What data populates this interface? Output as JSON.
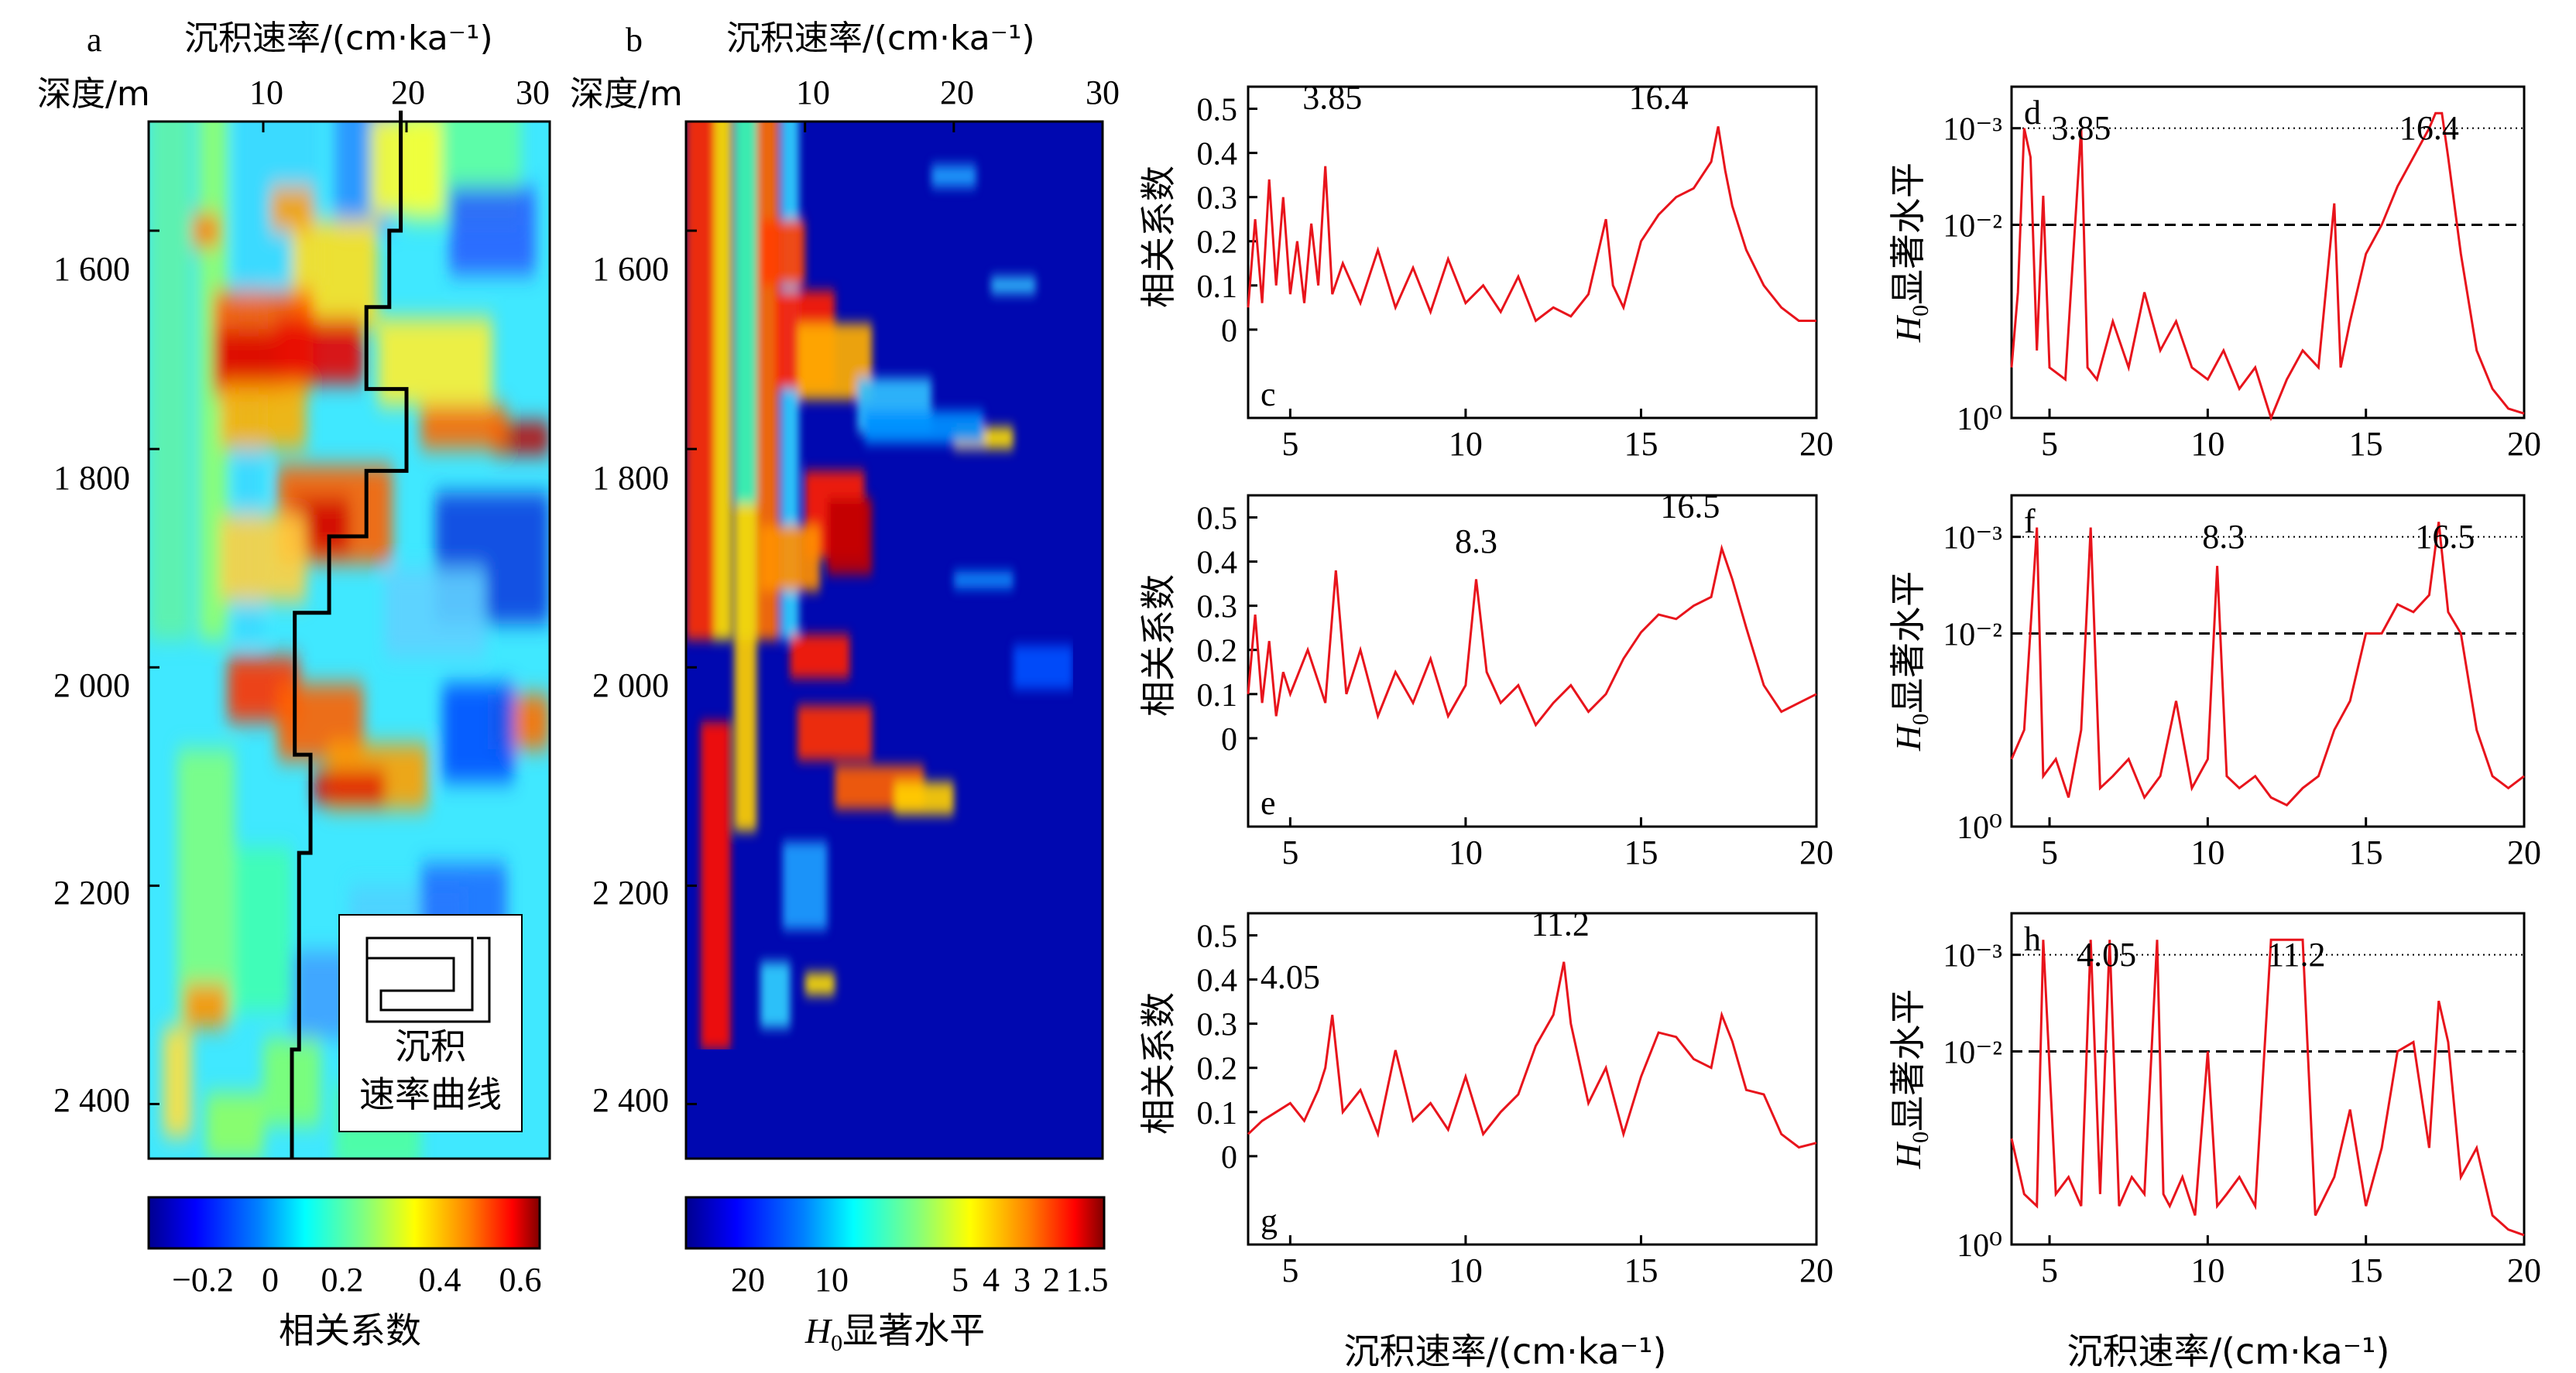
{
  "figure": {
    "panel_ab": {
      "letters": [
        "a",
        "b"
      ],
      "top_axis_title": "沉积速率/(cm·ka⁻¹)",
      "depth_title": "深度/m",
      "top_ticks": [
        "10",
        "20",
        "30"
      ],
      "depth_ticks": [
        "1 600",
        "1 800",
        "2 000",
        "2 200",
        "2 400"
      ],
      "legend_label_line1": "沉积",
      "legend_label_line2": "速率曲线",
      "colorbar_a_ticks": [
        "−0.2",
        "0",
        "0.2",
        "0.4",
        "0.6"
      ],
      "colorbar_a_title": "相关系数",
      "colorbar_b_ticks": [
        "20",
        "10",
        "5",
        "4",
        "3",
        "2",
        "1.5"
      ],
      "colorbar_b_title_italic": "H",
      "colorbar_b_title_sub": "0",
      "colorbar_b_title_rest": "显著水平"
    },
    "bottom_xlabel": "沉积速率/(cm·ka⁻¹)",
    "corr_ylabel": "相关系数",
    "sig_ylabel_italic": "H",
    "sig_ylabel_sub": "0",
    "sig_ylabel_rest": "显著水平",
    "line_color": "#e8141c",
    "colormap_anchor_colors": [
      "#00008f",
      "#0040ff",
      "#00c0ff",
      "#5fffa0",
      "#ffff00",
      "#ff8000",
      "#e00000",
      "#800000"
    ]
  },
  "chart_data": [
    {
      "type": "heatmap",
      "panel": "a",
      "x_title": "沉积速率/(cm·ka⁻¹)",
      "y_title": "深度/m",
      "xlim": [
        2,
        30
      ],
      "x_ticks": [
        10,
        20,
        30
      ],
      "ylim": [
        1500,
        2450
      ],
      "y_ticks": [
        1600,
        1800,
        2000,
        2200,
        2400
      ],
      "value_label": "相关系数",
      "value_range": [
        -0.3,
        0.6
      ],
      "overlay": {
        "name": "沉积速率曲线",
        "points": [
          {
            "depth": 1490,
            "rate": 19.6
          },
          {
            "depth": 1600,
            "rate": 18.8
          },
          {
            "depth": 1670,
            "rate": 17.2
          },
          {
            "depth": 1745,
            "rate": 20.0
          },
          {
            "depth": 1820,
            "rate": 17.2
          },
          {
            "depth": 1880,
            "rate": 14.6
          },
          {
            "depth": 1950,
            "rate": 12.2
          },
          {
            "depth": 2080,
            "rate": 13.3
          },
          {
            "depth": 2170,
            "rate": 12.5
          },
          {
            "depth": 2250,
            "rate": 12.5
          },
          {
            "depth": 2350,
            "rate": 12.0
          },
          {
            "depth": 2450,
            "rate": 12.0
          }
        ]
      }
    },
    {
      "type": "heatmap",
      "panel": "b",
      "x_title": "沉积速率/(cm·ka⁻¹)",
      "y_title": "深度/m",
      "xlim": [
        2,
        30
      ],
      "x_ticks": [
        10,
        20,
        30
      ],
      "ylim": [
        1500,
        2450
      ],
      "y_ticks": [
        1600,
        1800,
        2000,
        2200,
        2400
      ],
      "value_label": "H0显著水平",
      "value_ticks": [
        20,
        10,
        5,
        4,
        3,
        2,
        1.5
      ]
    },
    {
      "type": "line",
      "panel": "c",
      "ylabel": "相关系数",
      "xlabel": "沉积速率/(cm·ka⁻¹)",
      "xlim": [
        3.8,
        20
      ],
      "ylim": [
        -0.2,
        0.55
      ],
      "x_ticks": [
        5,
        10,
        15,
        20
      ],
      "y_ticks": [
        0,
        0.1,
        0.2,
        0.3,
        0.4,
        0.5
      ],
      "peak_labels": [
        "3.85",
        "16.4"
      ],
      "x": [
        3.8,
        4.0,
        4.2,
        4.4,
        4.6,
        4.8,
        5.0,
        5.2,
        5.4,
        5.6,
        5.8,
        6.0,
        6.2,
        6.5,
        7.0,
        7.5,
        8.0,
        8.5,
        9.0,
        9.5,
        10.0,
        10.5,
        11.0,
        11.5,
        12.0,
        12.5,
        13.0,
        13.5,
        14.0,
        14.2,
        14.5,
        15.0,
        15.5,
        16.0,
        16.5,
        17.0,
        17.2,
        17.4,
        17.6,
        18.0,
        18.5,
        19.0,
        19.5,
        20.0
      ],
      "y": [
        0.05,
        0.25,
        0.06,
        0.34,
        0.1,
        0.3,
        0.08,
        0.2,
        0.06,
        0.24,
        0.1,
        0.37,
        0.08,
        0.15,
        0.06,
        0.18,
        0.05,
        0.14,
        0.04,
        0.16,
        0.06,
        0.1,
        0.04,
        0.12,
        0.02,
        0.05,
        0.03,
        0.08,
        0.25,
        0.1,
        0.05,
        0.2,
        0.26,
        0.3,
        0.32,
        0.38,
        0.46,
        0.36,
        0.28,
        0.18,
        0.1,
        0.05,
        0.02,
        0.02
      ]
    },
    {
      "type": "line",
      "panel": "d",
      "ylabel": "H0显著水平",
      "xlabel": "沉积速率/(cm·ka⁻¹)",
      "xlim": [
        3.8,
        20
      ],
      "y_scale": "log",
      "y_reversed": true,
      "y_ticks": [
        "10⁻³",
        "10⁻²",
        "10⁰"
      ],
      "reference_lines": [
        0.001,
        0.01
      ],
      "peak_labels": [
        "3.85",
        "16.4"
      ],
      "x": [
        3.8,
        4.0,
        4.2,
        4.4,
        4.6,
        4.8,
        5.0,
        5.5,
        6.0,
        6.2,
        6.5,
        7.0,
        7.5,
        8.0,
        8.5,
        9.0,
        9.5,
        10.0,
        10.5,
        11.0,
        11.5,
        12.0,
        12.5,
        13.0,
        13.5,
        14.0,
        14.2,
        14.5,
        15.0,
        15.5,
        16.0,
        16.5,
        17.0,
        17.2,
        17.4,
        17.6,
        18.0,
        18.5,
        19.0,
        19.5,
        20.0
      ],
      "y": [
        0.3,
        0.05,
        0.001,
        0.002,
        0.2,
        0.005,
        0.3,
        0.4,
        0.001,
        0.3,
        0.4,
        0.1,
        0.3,
        0.05,
        0.2,
        0.1,
        0.3,
        0.4,
        0.2,
        0.5,
        0.3,
        1.0,
        0.4,
        0.2,
        0.3,
        0.006,
        0.3,
        0.1,
        0.02,
        0.01,
        0.004,
        0.002,
        0.001,
        0.0007,
        0.0007,
        0.002,
        0.02,
        0.2,
        0.5,
        0.8,
        0.9
      ]
    },
    {
      "type": "line",
      "panel": "e",
      "ylabel": "相关系数",
      "xlabel": "沉积速率/(cm·ka⁻¹)",
      "xlim": [
        3.8,
        20
      ],
      "ylim": [
        -0.2,
        0.55
      ],
      "x_ticks": [
        5,
        10,
        15,
        20
      ],
      "y_ticks": [
        0,
        0.1,
        0.2,
        0.3,
        0.4,
        0.5
      ],
      "peak_labels": [
        "8.3",
        "16.5"
      ],
      "x": [
        3.8,
        4.0,
        4.2,
        4.4,
        4.6,
        4.8,
        5.0,
        5.5,
        6.0,
        6.3,
        6.6,
        7.0,
        7.5,
        8.0,
        8.5,
        9.0,
        9.5,
        10.0,
        10.3,
        10.6,
        11.0,
        11.5,
        12.0,
        12.5,
        13.0,
        13.5,
        14.0,
        14.5,
        15.0,
        15.5,
        16.0,
        16.5,
        17.0,
        17.3,
        17.6,
        18.0,
        18.5,
        19.0,
        19.5,
        20.0
      ],
      "y": [
        0.1,
        0.28,
        0.08,
        0.22,
        0.05,
        0.15,
        0.1,
        0.2,
        0.08,
        0.38,
        0.1,
        0.2,
        0.05,
        0.15,
        0.08,
        0.18,
        0.05,
        0.12,
        0.36,
        0.15,
        0.08,
        0.12,
        0.03,
        0.08,
        0.12,
        0.06,
        0.1,
        0.18,
        0.24,
        0.28,
        0.27,
        0.3,
        0.32,
        0.43,
        0.36,
        0.25,
        0.12,
        0.06,
        0.08,
        0.1
      ]
    },
    {
      "type": "line",
      "panel": "f",
      "ylabel": "H0显著水平",
      "xlabel": "沉积速率/(cm·ka⁻¹)",
      "xlim": [
        3.8,
        20
      ],
      "y_scale": "log",
      "y_reversed": true,
      "y_ticks": [
        "10⁻³",
        "10⁻²",
        "10⁰"
      ],
      "reference_lines": [
        0.001,
        0.01
      ],
      "peak_labels": [
        "8.3",
        "16.5"
      ],
      "x": [
        3.8,
        4.2,
        4.6,
        4.8,
        5.2,
        5.6,
        6.0,
        6.3,
        6.6,
        7.0,
        7.5,
        8.0,
        8.5,
        9.0,
        9.5,
        10.0,
        10.3,
        10.6,
        11.0,
        11.5,
        12.0,
        12.5,
        13.0,
        13.5,
        14.0,
        14.5,
        15.0,
        15.5,
        16.0,
        16.5,
        17.0,
        17.3,
        17.6,
        18.0,
        18.5,
        19.0,
        19.5,
        20.0
      ],
      "y": [
        0.2,
        0.1,
        0.0008,
        0.3,
        0.2,
        0.5,
        0.1,
        0.0008,
        0.4,
        0.3,
        0.2,
        0.5,
        0.3,
        0.05,
        0.4,
        0.2,
        0.002,
        0.3,
        0.4,
        0.3,
        0.5,
        0.6,
        0.4,
        0.3,
        0.1,
        0.05,
        0.01,
        0.01,
        0.005,
        0.006,
        0.004,
        0.0007,
        0.006,
        0.01,
        0.1,
        0.3,
        0.4,
        0.3
      ]
    },
    {
      "type": "line",
      "panel": "g",
      "ylabel": "相关系数",
      "xlabel": "沉积速率/(cm·ka⁻¹)",
      "xlim": [
        3.8,
        20
      ],
      "ylim": [
        -0.2,
        0.55
      ],
      "x_ticks": [
        5,
        10,
        15,
        20
      ],
      "y_ticks": [
        0,
        0.1,
        0.2,
        0.3,
        0.4,
        0.5
      ],
      "peak_labels": [
        "4.05",
        "11.2"
      ],
      "x": [
        3.8,
        4.2,
        4.6,
        5.0,
        5.4,
        5.8,
        6.0,
        6.2,
        6.5,
        7.0,
        7.5,
        8.0,
        8.5,
        9.0,
        9.5,
        10.0,
        10.5,
        11.0,
        11.5,
        12.0,
        12.5,
        12.8,
        13.0,
        13.5,
        14.0,
        14.5,
        15.0,
        15.5,
        16.0,
        16.5,
        17.0,
        17.3,
        17.6,
        18.0,
        18.5,
        19.0,
        19.5,
        20.0
      ],
      "y": [
        0.05,
        0.08,
        0.1,
        0.12,
        0.08,
        0.15,
        0.2,
        0.32,
        0.1,
        0.15,
        0.05,
        0.24,
        0.08,
        0.12,
        0.06,
        0.18,
        0.05,
        0.1,
        0.14,
        0.25,
        0.32,
        0.44,
        0.3,
        0.12,
        0.2,
        0.05,
        0.18,
        0.28,
        0.27,
        0.22,
        0.2,
        0.32,
        0.26,
        0.15,
        0.14,
        0.05,
        0.02,
        0.03
      ]
    },
    {
      "type": "line",
      "panel": "h",
      "ylabel": "H0显著水平",
      "xlabel": "沉积速率/(cm·ka⁻¹)",
      "xlim": [
        3.8,
        20
      ],
      "y_scale": "log",
      "y_reversed": true,
      "y_ticks": [
        "10⁻³",
        "10⁻²",
        "10⁰"
      ],
      "reference_lines": [
        0.001,
        0.01
      ],
      "peak_labels": [
        "4.05",
        "11.2"
      ],
      "x": [
        3.8,
        4.2,
        4.6,
        4.8,
        5.2,
        5.6,
        6.0,
        6.3,
        6.6,
        6.9,
        7.2,
        7.6,
        8.0,
        8.4,
        8.6,
        8.8,
        9.2,
        9.6,
        10.0,
        10.3,
        10.6,
        11.0,
        11.5,
        12.0,
        12.4,
        13.0,
        13.4,
        14.0,
        14.5,
        15.0,
        15.5,
        16.0,
        16.5,
        17.0,
        17.3,
        17.6,
        18.0,
        18.5,
        19.0,
        19.5,
        20.0
      ],
      "y": [
        0.08,
        0.3,
        0.4,
        0.0007,
        0.3,
        0.2,
        0.4,
        0.0007,
        0.3,
        0.0007,
        0.4,
        0.2,
        0.3,
        0.0007,
        0.3,
        0.4,
        0.2,
        0.5,
        0.01,
        0.4,
        0.3,
        0.2,
        0.4,
        0.0007,
        0.0007,
        0.0007,
        0.5,
        0.2,
        0.04,
        0.4,
        0.1,
        0.01,
        0.008,
        0.1,
        0.003,
        0.008,
        0.2,
        0.1,
        0.5,
        0.7,
        0.8
      ]
    }
  ]
}
